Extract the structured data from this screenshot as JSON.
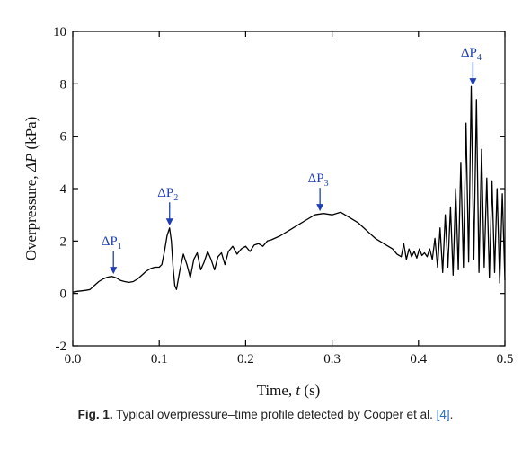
{
  "chart_data": {
    "type": "line",
    "xlabel_text": "Time, ",
    "xlabel_var": "t",
    "xlabel_unit": " (s)",
    "ylabel_text": "Overpressure, ",
    "ylabel_var": "ΔP",
    "ylabel_unit": " (kPa)",
    "xlim": [
      0.0,
      0.5
    ],
    "ylim": [
      -2,
      10
    ],
    "xticks": [
      0.0,
      0.1,
      0.2,
      0.3,
      0.4,
      0.5
    ],
    "xtick_labels": [
      "0.0",
      "0.1",
      "0.2",
      "0.3",
      "0.4",
      "0.5"
    ],
    "yticks": [
      -2,
      0,
      2,
      4,
      6,
      8,
      10
    ],
    "ytick_labels": [
      "-2",
      "0",
      "2",
      "4",
      "6",
      "8",
      "10"
    ],
    "grid": false,
    "series": [
      {
        "color": "#000000",
        "x": [
          0.0,
          0.005,
          0.01,
          0.015,
          0.02,
          0.025,
          0.03,
          0.035,
          0.04,
          0.045,
          0.05,
          0.055,
          0.06,
          0.065,
          0.07,
          0.075,
          0.08,
          0.085,
          0.09,
          0.095,
          0.1,
          0.103,
          0.106,
          0.109,
          0.112,
          0.114,
          0.116,
          0.118,
          0.12,
          0.124,
          0.128,
          0.132,
          0.136,
          0.14,
          0.144,
          0.148,
          0.152,
          0.156,
          0.16,
          0.164,
          0.168,
          0.172,
          0.176,
          0.18,
          0.185,
          0.19,
          0.195,
          0.2,
          0.205,
          0.21,
          0.215,
          0.22,
          0.225,
          0.23,
          0.24,
          0.25,
          0.26,
          0.27,
          0.28,
          0.29,
          0.3,
          0.31,
          0.32,
          0.33,
          0.34,
          0.35,
          0.36,
          0.37,
          0.375,
          0.38,
          0.383,
          0.386,
          0.389,
          0.392,
          0.395,
          0.398,
          0.401,
          0.404,
          0.407,
          0.41,
          0.413,
          0.416,
          0.419,
          0.422,
          0.425,
          0.428,
          0.431,
          0.434,
          0.437,
          0.44,
          0.443,
          0.446,
          0.449,
          0.452,
          0.455,
          0.458,
          0.461,
          0.464,
          0.467,
          0.47,
          0.473,
          0.476,
          0.479,
          0.482,
          0.485,
          0.488,
          0.491,
          0.494,
          0.497,
          0.5
        ],
        "y": [
          0.05,
          0.08,
          0.1,
          0.12,
          0.15,
          0.3,
          0.45,
          0.55,
          0.62,
          0.65,
          0.6,
          0.5,
          0.45,
          0.42,
          0.45,
          0.55,
          0.7,
          0.85,
          0.95,
          1.0,
          1.0,
          1.1,
          1.6,
          2.2,
          2.5,
          2.0,
          1.0,
          0.3,
          0.15,
          0.9,
          1.5,
          1.1,
          0.6,
          1.3,
          1.55,
          0.9,
          1.2,
          1.6,
          1.3,
          0.9,
          1.4,
          1.55,
          1.1,
          1.6,
          1.8,
          1.5,
          1.7,
          1.8,
          1.6,
          1.85,
          1.9,
          1.8,
          2.0,
          2.05,
          2.2,
          2.4,
          2.6,
          2.8,
          3.0,
          3.05,
          3.0,
          3.1,
          2.9,
          2.7,
          2.4,
          2.1,
          1.9,
          1.7,
          1.5,
          1.4,
          1.9,
          1.3,
          1.7,
          1.4,
          1.6,
          1.35,
          1.7,
          1.45,
          1.55,
          1.4,
          1.7,
          1.3,
          2.1,
          1.0,
          2.5,
          0.8,
          3.0,
          1.0,
          3.3,
          0.7,
          4.0,
          0.9,
          5.0,
          1.0,
          6.5,
          1.2,
          7.9,
          1.3,
          7.4,
          0.8,
          5.5,
          1.0,
          4.4,
          0.6,
          4.3,
          0.8,
          4.0,
          0.4,
          3.8,
          0.5
        ]
      }
    ],
    "annotations": [
      {
        "base": "ΔP",
        "sub": "1",
        "x": 0.047,
        "y": 0.6,
        "color": "#1f3fb5"
      },
      {
        "base": "ΔP",
        "sub": "2",
        "x": 0.112,
        "y": 2.45,
        "color": "#1f3fb5"
      },
      {
        "base": "ΔP",
        "sub": "3",
        "x": 0.286,
        "y": 3.0,
        "color": "#1f3fb5"
      },
      {
        "base": "ΔP",
        "sub": "4",
        "x": 0.463,
        "y": 7.8,
        "color": "#1f3fb5"
      }
    ]
  },
  "caption": {
    "fig_label": "Fig. 1.",
    "text": " Typical overpressure–time profile detected by Cooper et al. ",
    "ref": "[4]",
    "end": "."
  }
}
